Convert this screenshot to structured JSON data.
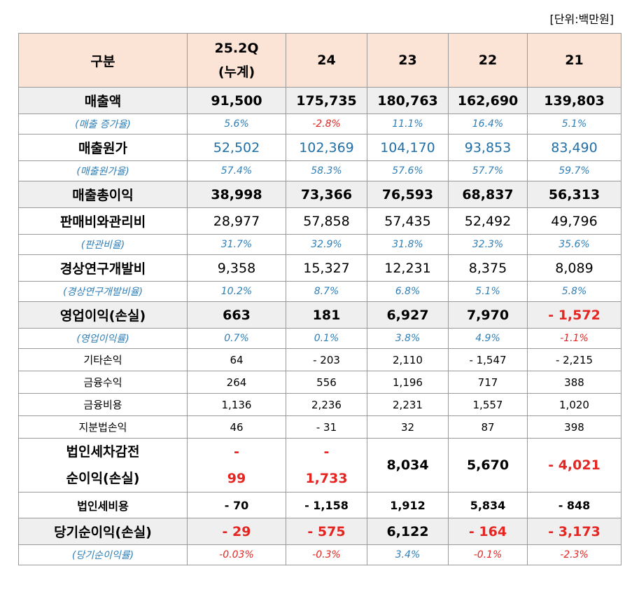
{
  "unit_label": "[단위:백만원]",
  "header": {
    "label": "구분",
    "col1_line1": "25.2Q",
    "col1_line2": "(누계)",
    "col2": "24",
    "col3": "23",
    "col4": "22",
    "col5": "21"
  },
  "rows": {
    "sales": {
      "label": "매출액",
      "v": [
        "91,500",
        "175,735",
        "180,763",
        "162,690",
        "139,803"
      ]
    },
    "sales_growth": {
      "label": "(매출 증가율)",
      "v": [
        "5.6%",
        "-2.8%",
        "11.1%",
        "16.4%",
        "5.1%"
      ]
    },
    "cogs": {
      "label": "매출원가",
      "v": [
        "52,502",
        "102,369",
        "104,170",
        "93,853",
        "83,490"
      ]
    },
    "cogs_ratio": {
      "label": "(매출원가율)",
      "v": [
        "57.4%",
        "58.3%",
        "57.6%",
        "57.7%",
        "59.7%"
      ]
    },
    "gross": {
      "label": "매출총이익",
      "v": [
        "38,998",
        "73,366",
        "76,593",
        "68,837",
        "56,313"
      ]
    },
    "sga": {
      "label": "판매비와관리비",
      "v": [
        "28,977",
        "57,858",
        "57,435",
        "52,492",
        "49,796"
      ]
    },
    "sga_ratio": {
      "label": "(판관비율)",
      "v": [
        "31.7%",
        "32.9%",
        "31.8%",
        "32.3%",
        "35.6%"
      ]
    },
    "rnd": {
      "label": "경상연구개발비",
      "v": [
        "9,358",
        "15,327",
        "12,231",
        "8,375",
        "8,089"
      ]
    },
    "rnd_ratio": {
      "label": "(경상연구개발비율)",
      "v": [
        "10.2%",
        "8.7%",
        "6.8%",
        "5.1%",
        "5.8%"
      ]
    },
    "op": {
      "label": "영업이익(손실)",
      "v": [
        "663",
        "181",
        "6,927",
        "7,970",
        "- 1,572"
      ]
    },
    "op_ratio": {
      "label": "(영업이익률)",
      "v": [
        "0.7%",
        "0.1%",
        "3.8%",
        "4.9%",
        "-1.1%"
      ]
    },
    "other": {
      "label": "기타손익",
      "v": [
        "64",
        "- 203",
        "2,110",
        "- 1,547",
        "-   2,215"
      ]
    },
    "fin_inc": {
      "label": "금융수익",
      "v": [
        "264",
        "556",
        "1,196",
        "717",
        "388"
      ]
    },
    "fin_exp": {
      "label": "금융비용",
      "v": [
        "1,136",
        "2,236",
        "2,231",
        "1,557",
        "1,020"
      ]
    },
    "equity": {
      "label": "지분법손익",
      "v": [
        "46",
        "-    31",
        "32",
        "87",
        "398"
      ]
    },
    "pretax": {
      "label_line1": "법인세차감전",
      "label_line2": "순이익(손실)",
      "c1_line1": "-",
      "c1_line2": "99",
      "c2_line1": "-",
      "c2_line2": "1,733",
      "v3": "8,034",
      "v4": "5,670",
      "v5": "-   4,021"
    },
    "tax": {
      "label": "법인세비용",
      "v": [
        "-    70",
        "- 1,158",
        "1,912",
        "5,834",
        "-    848"
      ]
    },
    "net": {
      "label": "당기순이익(손실)",
      "v": [
        "- 29",
        "- 575",
        "6,122",
        "-    164",
        "-    3,173"
      ]
    },
    "net_ratio": {
      "label": "(당기순이익률)",
      "v": [
        "-0.03%",
        "-0.3%",
        "3.4%",
        "-0.1%",
        "-2.3%"
      ]
    }
  },
  "colors": {
    "header_bg": "#fbe3d6",
    "gray_bg": "#efefef",
    "ratio_blue": "#2f7fb8",
    "value_blue": "#1f6fa8",
    "negative_red": "#e52521"
  }
}
